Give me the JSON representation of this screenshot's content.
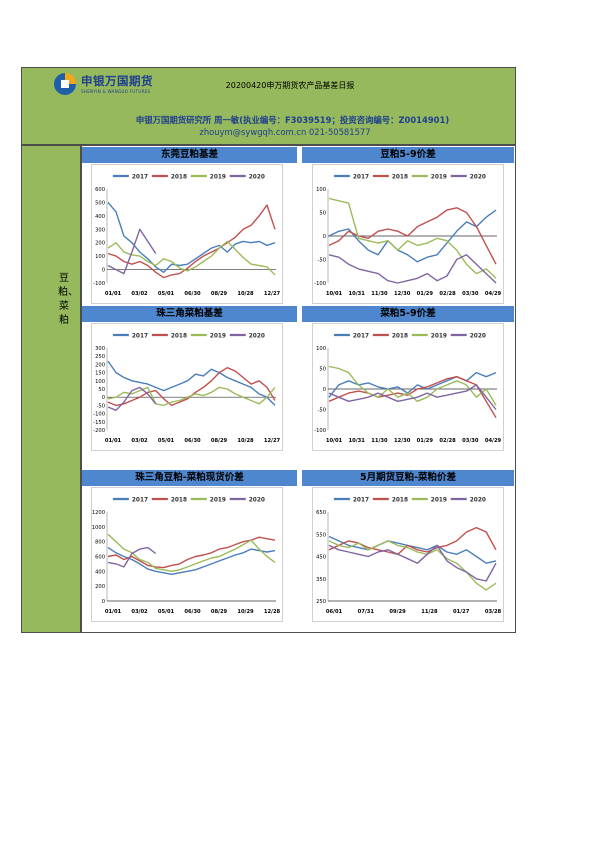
{
  "header": {
    "logo_name": "申银万国期货",
    "logo_sub": "SHENYIN & WANGUO FUTURES",
    "report_title": "20200420申万期货农产品基差日报",
    "org_line": "申银万国期货研究所 周一敏(执业编号：F3039519；投资咨询编号：Z0014901)",
    "email_line": "zhouym@sywgqh.com.cn 021-50581577"
  },
  "sidebar": {
    "label": "豆粕、菜粕"
  },
  "colors": {
    "header_band": "#95b95c",
    "title_bar": "#4f87cf",
    "s2017": "#4a7ebb",
    "s2018": "#c0504d",
    "s2019": "#9bbb59",
    "s2020": "#8064a2"
  },
  "chart_data": [
    {
      "id": "c1",
      "type": "line",
      "title": "东莞豆粕基差",
      "legend": [
        "2017",
        "2018",
        "2019",
        "2020"
      ],
      "legend_placement": "top",
      "ylim": [
        -100,
        600
      ],
      "yticks": [
        -100,
        0,
        100,
        200,
        300,
        400,
        500,
        600
      ],
      "xlabels": [
        "01/01",
        "03/02",
        "05/01",
        "06/30",
        "08/29",
        "10/28",
        "12/27"
      ],
      "series": [
        {
          "name": "2017",
          "values": [
            500,
            430,
            250,
            200,
            130,
            80,
            20,
            -20,
            40,
            30,
            40,
            80,
            120,
            160,
            180,
            130,
            190,
            210,
            200,
            210,
            180,
            200
          ]
        },
        {
          "name": "2018",
          "values": [
            120,
            100,
            60,
            40,
            60,
            30,
            -20,
            -60,
            -40,
            -30,
            10,
            60,
            100,
            130,
            160,
            200,
            240,
            300,
            330,
            400,
            480,
            300
          ]
        },
        {
          "name": "2019",
          "values": [
            160,
            200,
            130,
            110,
            100,
            60,
            30,
            80,
            60,
            10,
            -10,
            20,
            60,
            100,
            160,
            210,
            150,
            90,
            40,
            30,
            20,
            -40
          ]
        },
        {
          "name": "2020",
          "values": [
            30,
            0,
            -30,
            130,
            300,
            210,
            120
          ]
        }
      ]
    },
    {
      "id": "c2",
      "type": "line",
      "title": "豆粕5-9价差",
      "legend": [
        "2017",
        "2018",
        "2019",
        "2020"
      ],
      "legend_placement": "top",
      "ylim": [
        -100,
        100
      ],
      "yticks": [
        -100,
        -50,
        0,
        50,
        100
      ],
      "xlabels": [
        "10/01",
        "10/31",
        "11/30",
        "12/30",
        "01/29",
        "02/28",
        "03/30",
        "04/29"
      ],
      "series": [
        {
          "name": "2017",
          "values": [
            0,
            10,
            15,
            -10,
            -30,
            -40,
            -10,
            -30,
            -40,
            -55,
            -45,
            -40,
            -15,
            10,
            30,
            20,
            40,
            55
          ]
        },
        {
          "name": "2018",
          "values": [
            -20,
            -10,
            10,
            0,
            -5,
            10,
            15,
            10,
            0,
            20,
            30,
            40,
            55,
            60,
            50,
            20,
            -20,
            -60
          ]
        },
        {
          "name": "2019",
          "values": [
            80,
            75,
            70,
            -5,
            -10,
            -15,
            -10,
            -30,
            -10,
            -20,
            -15,
            -5,
            -10,
            -30,
            -60,
            -80,
            -70,
            -90
          ]
        },
        {
          "name": "2020",
          "values": [
            -40,
            -45,
            -60,
            -70,
            -75,
            -80,
            -95,
            -100,
            -95,
            -90,
            -80,
            -95,
            -85,
            -50,
            -40,
            -60,
            -80,
            -100
          ]
        }
      ]
    },
    {
      "id": "c3",
      "type": "line",
      "title": "珠三角菜粕基差",
      "legend": [
        "2017",
        "2018",
        "2019",
        "2020"
      ],
      "legend_placement": "top",
      "ylim": [
        -200,
        300
      ],
      "yticks": [
        -200,
        -150,
        -100,
        -50,
        0,
        50,
        100,
        150,
        200,
        250,
        300
      ],
      "xlabels": [
        "01/01",
        "03/02",
        "05/01",
        "06/30",
        "08/29",
        "10/28",
        "12/27"
      ],
      "series": [
        {
          "name": "2017",
          "values": [
            220,
            150,
            120,
            100,
            90,
            80,
            60,
            40,
            60,
            80,
            100,
            140,
            130,
            170,
            150,
            120,
            100,
            80,
            60,
            20,
            0,
            -50
          ]
        },
        {
          "name": "2018",
          "values": [
            -30,
            -50,
            -40,
            -20,
            0,
            30,
            40,
            -10,
            -50,
            -30,
            -10,
            30,
            60,
            100,
            150,
            180,
            160,
            120,
            80,
            100,
            60,
            -20
          ]
        },
        {
          "name": "2019",
          "values": [
            -10,
            0,
            30,
            20,
            40,
            60,
            -40,
            -50,
            -30,
            -20,
            0,
            20,
            10,
            30,
            60,
            50,
            20,
            0,
            -20,
            -40,
            0,
            60
          ]
        },
        {
          "name": "2020",
          "values": [
            -60,
            -80,
            -30,
            40,
            60,
            20,
            -40
          ]
        }
      ]
    },
    {
      "id": "c4",
      "type": "line",
      "title": "菜粕5-9价差",
      "legend": [
        "2017",
        "2018",
        "2019",
        "2020"
      ],
      "legend_placement": "top",
      "ylim": [
        -100,
        100
      ],
      "yticks": [
        -100,
        -50,
        0,
        50,
        100
      ],
      "xlabels": [
        "10/01",
        "10/31",
        "11/30",
        "12/30",
        "01/29",
        "02/28",
        "03/30",
        "04/29"
      ],
      "series": [
        {
          "name": "2017",
          "values": [
            -20,
            10,
            20,
            10,
            15,
            5,
            0,
            5,
            -10,
            10,
            0,
            10,
            20,
            30,
            20,
            40,
            30,
            40
          ]
        },
        {
          "name": "2018",
          "values": [
            -30,
            -20,
            -10,
            -5,
            -10,
            -20,
            -15,
            -10,
            -15,
            0,
            5,
            15,
            25,
            30,
            20,
            10,
            -30,
            -70
          ]
        },
        {
          "name": "2019",
          "values": [
            55,
            50,
            40,
            10,
            -10,
            -20,
            0,
            -20,
            -10,
            -30,
            -20,
            0,
            10,
            20,
            10,
            -20,
            0,
            -40
          ]
        },
        {
          "name": "2020",
          "values": [
            -10,
            -20,
            -30,
            -25,
            -20,
            -10,
            -20,
            -30,
            -25,
            -20,
            -10,
            -20,
            -15,
            -10,
            -5,
            10,
            -20,
            -50
          ]
        }
      ]
    },
    {
      "id": "c5",
      "type": "line",
      "title": "珠三角豆粕-菜粕现货价差",
      "legend": [
        "2017",
        "2018",
        "2019",
        "2020"
      ],
      "legend_placement": "top",
      "ylim": [
        0,
        1200
      ],
      "yticks": [
        0,
        200,
        400,
        600,
        800,
        1000,
        1200
      ],
      "xlabels": [
        "01/01",
        "03/02",
        "05/01",
        "06/30",
        "08/29",
        "10/29",
        "12/28"
      ],
      "series": [
        {
          "name": "2017",
          "values": [
            720,
            650,
            600,
            560,
            500,
            430,
            400,
            380,
            360,
            380,
            400,
            420,
            460,
            500,
            540,
            580,
            620,
            650,
            700,
            680,
            660,
            680
          ]
        },
        {
          "name": "2018",
          "values": [
            600,
            620,
            560,
            600,
            540,
            480,
            460,
            450,
            480,
            500,
            560,
            600,
            620,
            650,
            700,
            720,
            760,
            800,
            820,
            860,
            840,
            820
          ]
        },
        {
          "name": "2019",
          "values": [
            900,
            800,
            700,
            650,
            560,
            520,
            440,
            420,
            400,
            420,
            460,
            500,
            540,
            580,
            600,
            650,
            700,
            760,
            820,
            700,
            600,
            520
          ]
        },
        {
          "name": "2020",
          "values": [
            520,
            500,
            460,
            640,
            700,
            720,
            640
          ]
        }
      ]
    },
    {
      "id": "c6",
      "type": "line",
      "title": "5月期货豆粕-菜粕价差",
      "legend": [
        "2017",
        "2018",
        "2019",
        "2020"
      ],
      "legend_placement": "top",
      "ylim": [
        250,
        650
      ],
      "yticks": [
        250,
        350,
        450,
        550,
        650
      ],
      "xlabels": [
        "06/01",
        "07/31",
        "09/29",
        "11/28",
        "01/27",
        "03/28"
      ],
      "series": [
        {
          "name": "2017",
          "values": [
            540,
            520,
            500,
            490,
            480,
            500,
            520,
            510,
            500,
            490,
            480,
            500,
            470,
            460,
            480,
            450,
            420,
            430
          ]
        },
        {
          "name": "2018",
          "values": [
            480,
            500,
            520,
            510,
            490,
            480,
            470,
            460,
            500,
            480,
            470,
            490,
            500,
            520,
            560,
            580,
            560,
            480
          ]
        },
        {
          "name": "2019",
          "values": [
            520,
            500,
            490,
            510,
            480,
            500,
            520,
            500,
            490,
            470,
            460,
            480,
            440,
            420,
            380,
            330,
            300,
            330
          ]
        },
        {
          "name": "2020",
          "values": [
            500,
            480,
            470,
            460,
            450,
            470,
            480,
            460,
            440,
            420,
            460,
            500,
            430,
            400,
            380,
            350,
            340,
            420
          ]
        }
      ]
    }
  ]
}
